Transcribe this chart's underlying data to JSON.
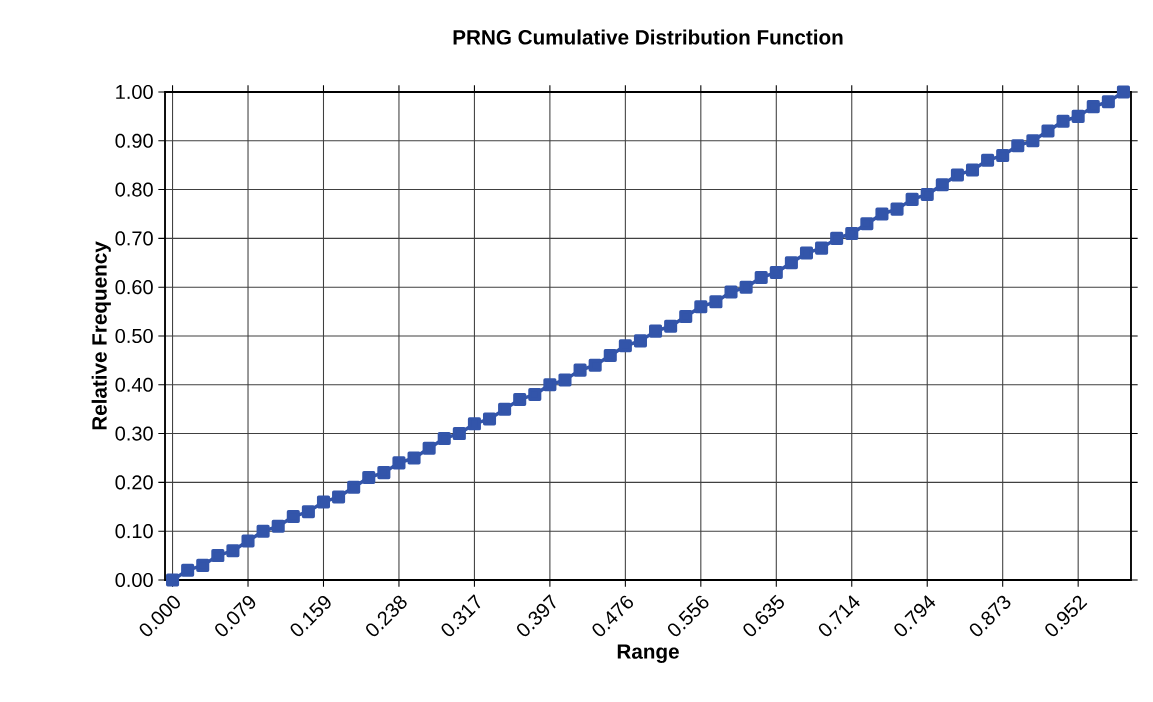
{
  "chart_data": {
    "type": "line",
    "title": "PRNG Cumulative Distribution Function",
    "xlabel": "Range",
    "ylabel": "Relative Frequency",
    "categories": [
      "0.000",
      null,
      null,
      null,
      null,
      "0.079",
      null,
      null,
      null,
      null,
      "0.159",
      null,
      null,
      null,
      null,
      "0.238",
      null,
      null,
      null,
      null,
      "0.317",
      null,
      null,
      null,
      null,
      "0.397",
      null,
      null,
      null,
      null,
      "0.476",
      null,
      null,
      null,
      null,
      "0.556",
      null,
      null,
      null,
      null,
      "0.635",
      null,
      null,
      null,
      null,
      "0.714",
      null,
      null,
      null,
      null,
      "0.794",
      null,
      null,
      null,
      null,
      "0.873",
      null,
      null,
      null,
      null,
      "0.952",
      null,
      null,
      null
    ],
    "values": [
      0.0,
      0.02,
      0.03,
      0.05,
      0.06,
      0.08,
      0.1,
      0.11,
      0.13,
      0.14,
      0.16,
      0.17,
      0.19,
      0.21,
      0.22,
      0.24,
      0.25,
      0.27,
      0.29,
      0.3,
      0.32,
      0.33,
      0.35,
      0.37,
      0.38,
      0.4,
      0.41,
      0.43,
      0.44,
      0.46,
      0.48,
      0.49,
      0.51,
      0.52,
      0.54,
      0.56,
      0.57,
      0.59,
      0.6,
      0.62,
      0.63,
      0.65,
      0.67,
      0.68,
      0.7,
      0.71,
      0.73,
      0.75,
      0.76,
      0.78,
      0.79,
      0.81,
      0.83,
      0.84,
      0.86,
      0.87,
      0.89,
      0.9,
      0.92,
      0.94,
      0.95,
      0.97,
      0.98,
      1.0
    ],
    "color": "#3355aa",
    "marker": "square",
    "line_style": "solid",
    "grid": true,
    "ylim": [
      0,
      1
    ],
    "yticks": [
      {
        "value": 0,
        "label": "0.00"
      },
      {
        "value": 0.1,
        "label": "0.10"
      },
      {
        "value": 0.2,
        "label": "0.20"
      },
      {
        "value": 0.3,
        "label": "0.30"
      },
      {
        "value": 0.4,
        "label": "0.40"
      },
      {
        "value": 0.5,
        "label": "0.50"
      },
      {
        "value": 0.6,
        "label": "0.60"
      },
      {
        "value": 0.7,
        "label": "0.70"
      },
      {
        "value": 0.8,
        "label": "0.80"
      },
      {
        "value": 0.9,
        "label": "0.90"
      },
      {
        "value": 1,
        "label": "1.00"
      }
    ]
  }
}
